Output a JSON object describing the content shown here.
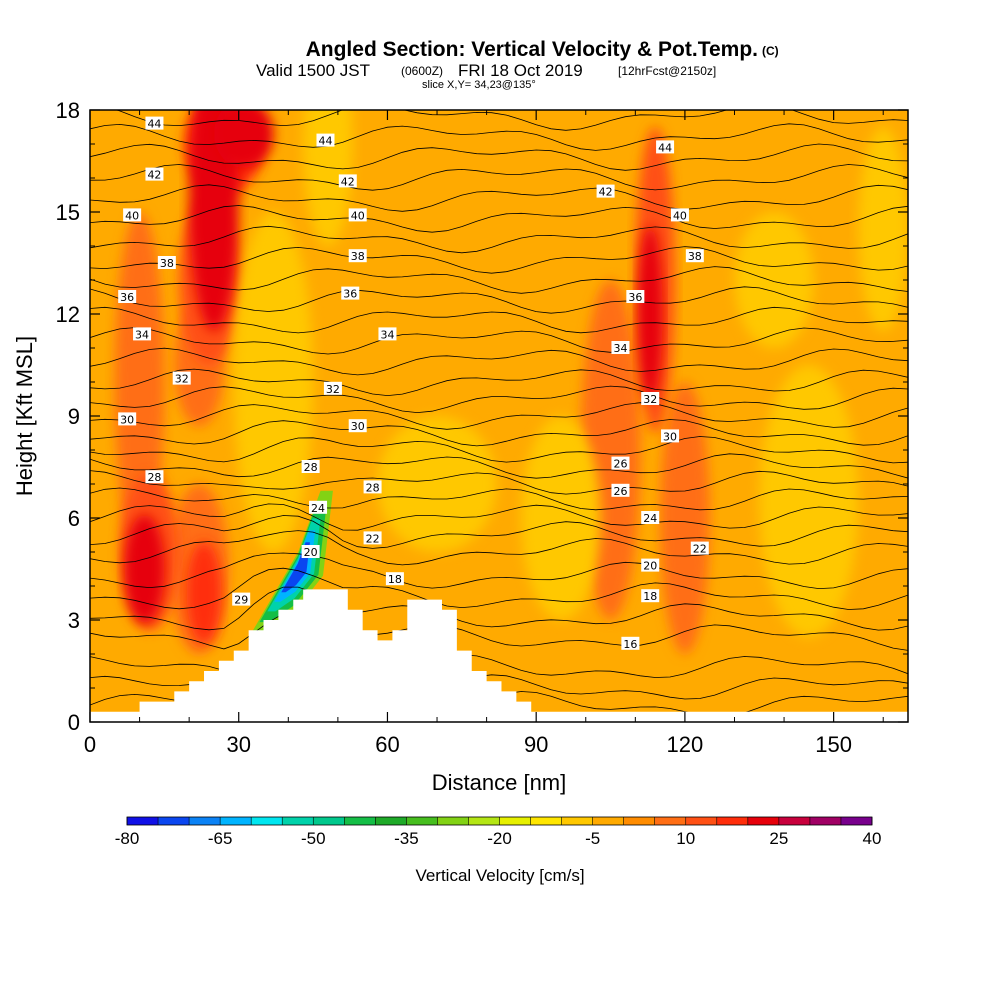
{
  "chart_data": {
    "type": "heatmap",
    "title": {
      "main": "Angled Section: Vertical Velocity & Pot.Temp.",
      "main_unit": "(C)",
      "valid_prefix": "Valid 1500 JST",
      "valid_zulu": "(0600Z)",
      "valid_date": "FRI 18 Oct 2019",
      "forecast": "[12hrFcst@2150z]",
      "slice": "slice X,Y= 34,23@135°"
    },
    "xlabel": "Distance [nm]",
    "ylabel": "Height [Kft MSL]",
    "xlim": [
      0,
      165
    ],
    "ylim": [
      0,
      18
    ],
    "x_ticks": [
      0,
      30,
      60,
      90,
      120,
      150
    ],
    "y_ticks": [
      0,
      3,
      6,
      9,
      12,
      15,
      18
    ],
    "background_velocity_cm_s": -5,
    "colorbar": {
      "title": "Vertical Velocity [cm/s]",
      "tick_labels": [
        "-80",
        "-65",
        "-50",
        "-35",
        "-20",
        "-5",
        "10",
        "25",
        "40"
      ],
      "bins": [
        {
          "lo": -80,
          "color": "#1010e6"
        },
        {
          "lo": -75,
          "color": "#0a46f0"
        },
        {
          "lo": -70,
          "color": "#0a82f5"
        },
        {
          "lo": -65,
          "color": "#00b4ff"
        },
        {
          "lo": -60,
          "color": "#00e6f0"
        },
        {
          "lo": -55,
          "color": "#00d2aa"
        },
        {
          "lo": -50,
          "color": "#00c88c"
        },
        {
          "lo": -45,
          "color": "#14be46"
        },
        {
          "lo": -40,
          "color": "#1eaa28"
        },
        {
          "lo": -35,
          "color": "#46be1e"
        },
        {
          "lo": -30,
          "color": "#82d214"
        },
        {
          "lo": -25,
          "color": "#b4e614"
        },
        {
          "lo": -20,
          "color": "#e6f000"
        },
        {
          "lo": -15,
          "color": "#ffe600"
        },
        {
          "lo": -10,
          "color": "#ffc800"
        },
        {
          "lo": -5,
          "color": "#ffaa00"
        },
        {
          "lo": 0,
          "color": "#ff8c00"
        },
        {
          "lo": 5,
          "color": "#ff6e14"
        },
        {
          "lo": 10,
          "color": "#ff5014"
        },
        {
          "lo": 15,
          "color": "#ff2d0a"
        },
        {
          "lo": 20,
          "color": "#e6000a"
        },
        {
          "lo": 25,
          "color": "#c8003c"
        },
        {
          "lo": 30,
          "color": "#a00064"
        },
        {
          "lo": 35,
          "color": "#78008c"
        }
      ]
    },
    "velocity_features": [
      {
        "kind": "updraft",
        "x": 25,
        "y": 15.5,
        "rx": 5,
        "ry": 4,
        "value": 20
      },
      {
        "kind": "updraft",
        "x": 31,
        "y": 17.3,
        "rx": 6,
        "ry": 1.0,
        "value": 20
      },
      {
        "kind": "updraft",
        "x": 24,
        "y": 13,
        "rx": 6,
        "ry": 2.5,
        "value": 10
      },
      {
        "kind": "updraft",
        "x": 27,
        "y": 17,
        "rx": 8,
        "ry": 1.5,
        "value": 15
      },
      {
        "kind": "updraft",
        "x": 22,
        "y": 10.5,
        "rx": 5,
        "ry": 1.8,
        "value": 5
      },
      {
        "kind": "updraft",
        "x": 11,
        "y": 4.5,
        "rx": 4,
        "ry": 1.6,
        "value": 20
      },
      {
        "kind": "updraft",
        "x": 12,
        "y": 5,
        "rx": 6,
        "ry": 2.3,
        "value": 10
      },
      {
        "kind": "updraft",
        "x": 23,
        "y": 3.8,
        "rx": 3.5,
        "ry": 1.5,
        "value": 15
      },
      {
        "kind": "updraft",
        "x": 22,
        "y": 4.5,
        "rx": 6,
        "ry": 2.5,
        "value": 5
      },
      {
        "kind": "updraft",
        "x": 113,
        "y": 12,
        "rx": 2.5,
        "ry": 2.6,
        "value": 20
      },
      {
        "kind": "updraft",
        "x": 114,
        "y": 13,
        "rx": 4,
        "ry": 4.5,
        "value": 10
      },
      {
        "kind": "updraft",
        "x": 120,
        "y": 6,
        "rx": 5,
        "ry": 4,
        "value": 5
      },
      {
        "kind": "updraft",
        "x": 105,
        "y": 8,
        "rx": 6,
        "ry": 5,
        "value": 5
      },
      {
        "kind": "updraft",
        "x": 10,
        "y": 10,
        "rx": 5,
        "ry": 5,
        "value": 5
      },
      {
        "kind": "downdraft",
        "x": 37,
        "y": 10,
        "rx": 8,
        "ry": 5,
        "value": -10
      },
      {
        "kind": "downdraft",
        "x": 48,
        "y": 17,
        "rx": 5,
        "ry": 3,
        "value": -10
      },
      {
        "kind": "downdraft",
        "x": 70,
        "y": 7,
        "rx": 12,
        "ry": 2,
        "value": -10
      },
      {
        "kind": "downdraft",
        "x": 160,
        "y": 14.5,
        "rx": 5,
        "ry": 3,
        "value": -10
      },
      {
        "kind": "downdraft",
        "x": 138,
        "y": 13,
        "rx": 8,
        "ry": 2,
        "value": -10
      },
      {
        "kind": "downdraft",
        "x": 95,
        "y": 6,
        "rx": 8,
        "ry": 3,
        "value": -10
      },
      {
        "kind": "downdraft",
        "x": 145,
        "y": 6.5,
        "rx": 10,
        "ry": 4,
        "value": -10
      }
    ],
    "downdraft_band": {
      "path": [
        [
          32.5,
          2.6
        ],
        [
          42,
          5.0
        ],
        [
          46.5,
          6.8
        ],
        [
          49,
          6.8
        ],
        [
          47,
          4.3
        ],
        [
          41,
          3.2
        ],
        [
          35,
          2.6
        ]
      ],
      "levels": [
        {
          "scale": 1.0,
          "value": -30
        },
        {
          "scale": 0.82,
          "value": -45
        },
        {
          "scale": 0.65,
          "value": -55
        },
        {
          "scale": 0.5,
          "value": -65
        },
        {
          "scale": 0.35,
          "value": -75
        }
      ]
    },
    "terrain": [
      [
        0,
        0.3
      ],
      [
        10,
        0.3
      ],
      [
        10,
        0.6
      ],
      [
        17,
        0.6
      ],
      [
        17,
        0.9
      ],
      [
        20,
        0.9
      ],
      [
        20,
        1.2
      ],
      [
        23,
        1.2
      ],
      [
        23,
        1.5
      ],
      [
        26,
        1.5
      ],
      [
        26,
        1.8
      ],
      [
        29,
        1.8
      ],
      [
        29,
        2.1
      ],
      [
        32,
        2.1
      ],
      [
        32,
        2.7
      ],
      [
        35,
        2.7
      ],
      [
        35,
        3.0
      ],
      [
        38,
        3.0
      ],
      [
        38,
        3.3
      ],
      [
        41,
        3.3
      ],
      [
        41,
        3.6
      ],
      [
        43,
        3.6
      ],
      [
        43,
        3.9
      ],
      [
        52,
        3.9
      ],
      [
        52,
        3.3
      ],
      [
        55,
        3.3
      ],
      [
        55,
        2.7
      ],
      [
        58,
        2.7
      ],
      [
        58,
        2.4
      ],
      [
        61,
        2.4
      ],
      [
        61,
        2.7
      ],
      [
        64,
        2.7
      ],
      [
        64,
        3.6
      ],
      [
        71,
        3.6
      ],
      [
        71,
        3.3
      ],
      [
        74,
        3.3
      ],
      [
        74,
        2.1
      ],
      [
        77,
        2.1
      ],
      [
        77,
        1.5
      ],
      [
        80,
        1.5
      ],
      [
        80,
        1.2
      ],
      [
        83,
        1.2
      ],
      [
        83,
        0.9
      ],
      [
        86,
        0.9
      ],
      [
        86,
        0.6
      ],
      [
        89,
        0.6
      ],
      [
        89,
        0.3
      ],
      [
        165,
        0.3
      ]
    ],
    "theta_contours": [
      {
        "value": 16,
        "y": 0.5
      },
      {
        "value": 16.5,
        "y": 1.0
      },
      {
        "value": 17,
        "y": 1.6
      },
      {
        "value": 18,
        "y": 2.5
      },
      {
        "value": 19,
        "y": 3.1
      },
      {
        "value": 20,
        "y": 3.7
      },
      {
        "value": 21,
        "y": 4.3
      },
      {
        "value": 22,
        "y": 5.0
      },
      {
        "value": 23,
        "y": 5.5
      },
      {
        "value": 24,
        "y": 6.0
      },
      {
        "value": 25,
        "y": 6.5
      },
      {
        "value": 26,
        "y": 7.0
      },
      {
        "value": 27,
        "y": 7.5
      },
      {
        "value": 28,
        "y": 8.0
      },
      {
        "value": 29,
        "y": 8.5
      },
      {
        "value": 30,
        "y": 9.0
      },
      {
        "value": 31,
        "y": 9.5
      },
      {
        "value": 32,
        "y": 10.0
      },
      {
        "value": 33,
        "y": 10.6
      },
      {
        "value": 34,
        "y": 11.2
      },
      {
        "value": 35,
        "y": 11.8
      },
      {
        "value": 36,
        "y": 12.4
      },
      {
        "value": 37,
        "y": 13.0
      },
      {
        "value": 38,
        "y": 13.6
      },
      {
        "value": 39,
        "y": 14.2
      },
      {
        "value": 40,
        "y": 14.8
      },
      {
        "value": 41,
        "y": 15.4
      },
      {
        "value": 42,
        "y": 16.0
      },
      {
        "value": 43,
        "y": 16.6
      },
      {
        "value": 44,
        "y": 17.2
      },
      {
        "value": 45,
        "y": 17.8
      }
    ],
    "contour_labels": [
      {
        "text": "44",
        "x": 13,
        "y": 17.6
      },
      {
        "text": "44",
        "x": 47.5,
        "y": 17.1
      },
      {
        "text": "44",
        "x": 116,
        "y": 16.9
      },
      {
        "text": "42",
        "x": 13,
        "y": 16.1
      },
      {
        "text": "42",
        "x": 52,
        "y": 15.9
      },
      {
        "text": "42",
        "x": 104,
        "y": 15.6
      },
      {
        "text": "40",
        "x": 8.5,
        "y": 14.9
      },
      {
        "text": "40",
        "x": 54,
        "y": 14.9
      },
      {
        "text": "40",
        "x": 119,
        "y": 14.9
      },
      {
        "text": "38",
        "x": 15.5,
        "y": 13.5
      },
      {
        "text": "38",
        "x": 54,
        "y": 13.7
      },
      {
        "text": "38",
        "x": 122,
        "y": 13.7
      },
      {
        "text": "36",
        "x": 7.5,
        "y": 12.5
      },
      {
        "text": "36",
        "x": 52.5,
        "y": 12.6
      },
      {
        "text": "36",
        "x": 110,
        "y": 12.5
      },
      {
        "text": "34",
        "x": 10.5,
        "y": 11.4
      },
      {
        "text": "34",
        "x": 60,
        "y": 11.4
      },
      {
        "text": "34",
        "x": 107,
        "y": 11.0
      },
      {
        "text": "32",
        "x": 18.5,
        "y": 10.1
      },
      {
        "text": "32",
        "x": 49,
        "y": 9.8
      },
      {
        "text": "32",
        "x": 113,
        "y": 9.5
      },
      {
        "text": "30",
        "x": 7.5,
        "y": 8.9
      },
      {
        "text": "30",
        "x": 54,
        "y": 8.7
      },
      {
        "text": "30",
        "x": 117,
        "y": 8.4
      },
      {
        "text": "28",
        "x": 13,
        "y": 7.2
      },
      {
        "text": "28",
        "x": 44.5,
        "y": 7.5
      },
      {
        "text": "28",
        "x": 57,
        "y": 6.9
      },
      {
        "text": "26",
        "x": 107,
        "y": 7.6
      },
      {
        "text": "26",
        "x": 107,
        "y": 6.8
      },
      {
        "text": "24",
        "x": 46,
        "y": 6.3
      },
      {
        "text": "24",
        "x": 113,
        "y": 6.0
      },
      {
        "text": "22",
        "x": 57,
        "y": 5.4
      },
      {
        "text": "22",
        "x": 123,
        "y": 5.1
      },
      {
        "text": "20",
        "x": 44.5,
        "y": 5.0
      },
      {
        "text": "20",
        "x": 113,
        "y": 4.6
      },
      {
        "text": "18",
        "x": 61.5,
        "y": 4.2
      },
      {
        "text": "18",
        "x": 113,
        "y": 3.7
      },
      {
        "text": "16",
        "x": 109,
        "y": 2.3
      },
      {
        "text": "29",
        "x": 30.5,
        "y": 3.6
      }
    ],
    "grid": false,
    "legend": "colorbar-bottom"
  }
}
